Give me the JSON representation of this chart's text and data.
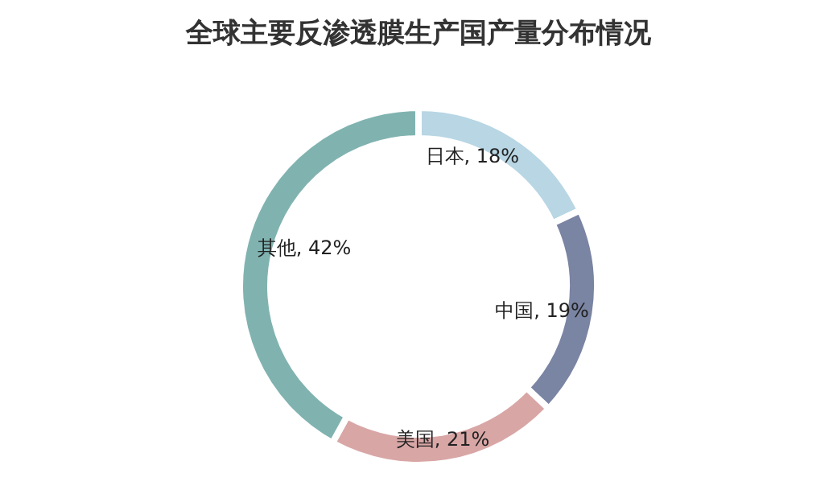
{
  "chart_data": {
    "type": "donut",
    "title": "全球主要反渗透膜生产国产量分布情况",
    "categories": [
      "日本",
      "中国",
      "美国",
      "其他"
    ],
    "values": [
      18,
      19,
      21,
      42
    ],
    "colors": [
      "#b8d6e4",
      "#7a84a3",
      "#d9a6a6",
      "#80b3b0"
    ],
    "value_labels": [
      ", 18%",
      ", 19%",
      ", 21%",
      ", 42%"
    ],
    "legend": false
  }
}
